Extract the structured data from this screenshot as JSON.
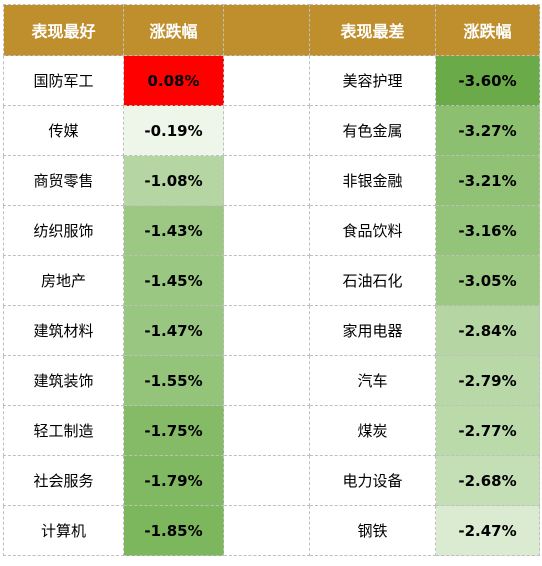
{
  "headers": {
    "best": "表现最好",
    "best_change": "涨跌幅",
    "worst": "表现最差",
    "worst_change": "涨跌幅"
  },
  "colors": {
    "header_bg": "#bf8f2e",
    "header_text": "#ffffff",
    "positive_cell": "#ff0000",
    "negative_scale_strong": "#6aaa48",
    "negative_scale_light": "#eef5e9"
  },
  "rows": [
    {
      "best_name": "国防军工",
      "best_change": "0.08%",
      "best_color": "#ff0000",
      "worst_name": "美容护理",
      "worst_change": "-3.60%",
      "worst_color": "#6aaa48"
    },
    {
      "best_name": "传媒",
      "best_change": "-0.19%",
      "best_color": "#eef5e9",
      "worst_name": "有色金属",
      "worst_change": "-3.27%",
      "worst_color": "#8cbf70"
    },
    {
      "best_name": "商贸零售",
      "best_change": "-1.08%",
      "best_color": "#b5d6a2",
      "worst_name": "非银金融",
      "worst_change": "-3.21%",
      "worst_color": "#90c175"
    },
    {
      "best_name": "纺织服饰",
      "best_change": "-1.43%",
      "best_color": "#9cc883",
      "worst_name": "食品饮料",
      "worst_change": "-3.16%",
      "worst_color": "#94c37a"
    },
    {
      "best_name": "房地产",
      "best_change": "-1.45%",
      "best_color": "#9ac781",
      "worst_name": "石油石化",
      "worst_change": "-3.05%",
      "worst_color": "#9cc883"
    },
    {
      "best_name": "建筑材料",
      "best_change": "-1.47%",
      "best_color": "#99c680",
      "worst_name": "家用电器",
      "worst_change": "-2.84%",
      "worst_color": "#b5d6a2"
    },
    {
      "best_name": "建筑装饰",
      "best_change": "-1.55%",
      "best_color": "#94c37a",
      "worst_name": "汽车",
      "worst_change": "-2.79%",
      "worst_color": "#b9d8a7"
    },
    {
      "best_name": "轻工制造",
      "best_change": "-1.75%",
      "best_color": "#85bb67",
      "worst_name": "煤炭",
      "worst_change": "-2.77%",
      "worst_color": "#bbdaa9"
    },
    {
      "best_name": "社会服务",
      "best_change": "-1.79%",
      "best_color": "#81b963",
      "worst_name": "电力设备",
      "worst_change": "-2.68%",
      "worst_color": "#c4dfb5"
    },
    {
      "best_name": "计算机",
      "best_change": "-1.85%",
      "best_color": "#7cb65d",
      "worst_name": "钢铁",
      "worst_change": "-2.47%",
      "worst_color": "#dbebd1"
    }
  ]
}
